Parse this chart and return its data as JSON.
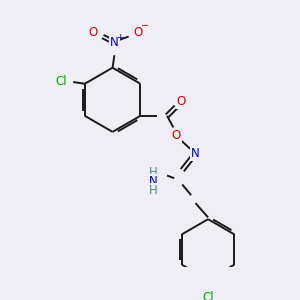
{
  "bg_color": "#eeeef4",
  "bond_color": "#1a1a1a",
  "atom_colors": {
    "O": "#dd0000",
    "N": "#0000cc",
    "Cl": "#00aa00",
    "C": "#1a1a1a",
    "H": "#558888"
  },
  "figsize": [
    3.0,
    3.0
  ],
  "dpi": 100
}
